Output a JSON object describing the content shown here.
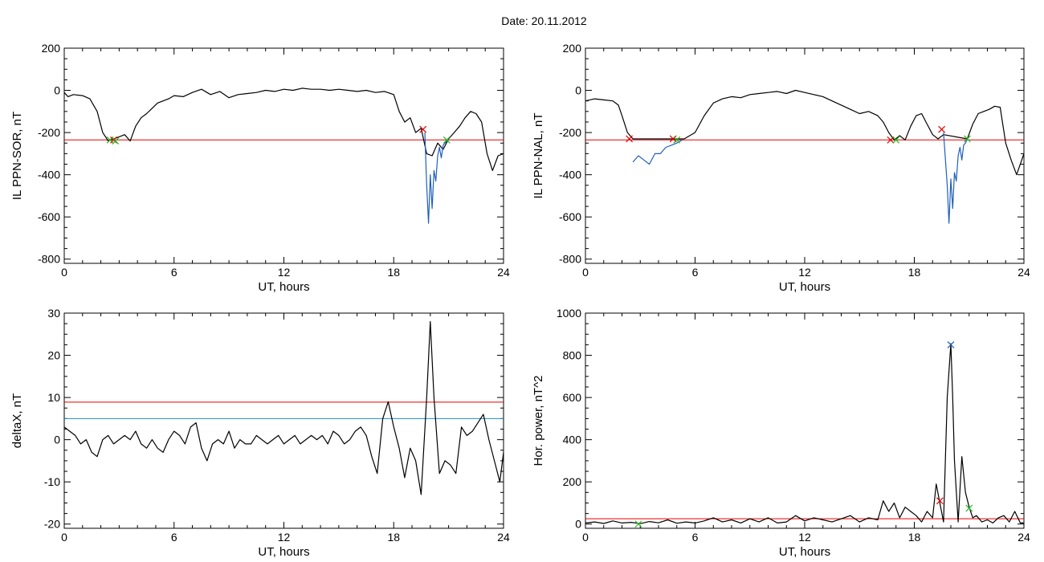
{
  "header": {
    "date_label": "Date:  20.11.2012"
  },
  "colors": {
    "line": "#000000",
    "blue": "#1f5fbf",
    "red": "#e60000",
    "cyan": "#1f8fbf",
    "green": "#22bb22"
  },
  "chart_data": [
    {
      "id": "sor",
      "type": "line",
      "xlabel": "UT, hours",
      "ylabel": "IL PPN-SOR, nT",
      "xlim": [
        0,
        24
      ],
      "ylim": [
        -820,
        200
      ],
      "xticks": [
        "0",
        "6",
        "12",
        "18",
        "24"
      ],
      "yticks": [
        "200",
        "0",
        "-200",
        "-400",
        "-600",
        "-800"
      ],
      "ytick_values": [
        200,
        0,
        -200,
        -400,
        -600,
        -800
      ],
      "series": [
        {
          "color": "black",
          "x": [
            0,
            0.2,
            0.5,
            1,
            1.4,
            1.8,
            2.1,
            2.4,
            2.7,
            3.0,
            3.3,
            3.6,
            3.9,
            4.2,
            4.5,
            4.8,
            5.1,
            5.4,
            5.7,
            6.0,
            6.5,
            7,
            7.5,
            8,
            8.5,
            9,
            9.5,
            10,
            10.5,
            11,
            11.5,
            12,
            12.5,
            13,
            13.5,
            14,
            14.5,
            15,
            15.5,
            16,
            16.5,
            17,
            17.5,
            18.0,
            18.3,
            18.6,
            18.9,
            19.2,
            19.5,
            19.8,
            20.1,
            20.4,
            20.7,
            21.0,
            21.3,
            21.6,
            21.9,
            22.2,
            22.5,
            22.8,
            23.1,
            23.4,
            23.7,
            24
          ],
          "y": [
            -10,
            -30,
            -20,
            -25,
            -40,
            -100,
            -200,
            -240,
            -230,
            -220,
            -210,
            -240,
            -170,
            -130,
            -110,
            -85,
            -60,
            -50,
            -40,
            -25,
            -30,
            -10,
            5,
            -20,
            -5,
            -35,
            -20,
            -15,
            -10,
            0,
            -5,
            5,
            0,
            10,
            5,
            5,
            0,
            5,
            0,
            -5,
            0,
            -10,
            -5,
            -20,
            -100,
            -150,
            -130,
            -200,
            -180,
            -300,
            -310,
            -250,
            -280,
            -230,
            -200,
            -170,
            -130,
            -100,
            -110,
            -150,
            -300,
            -380,
            -310,
            -300
          ]
        },
        {
          "color": "blue",
          "x": [
            19.7,
            19.8,
            19.9,
            20.0,
            20.1,
            20.2,
            20.3,
            20.4,
            20.5,
            20.6,
            20.7,
            20.8,
            20.9,
            21.0
          ],
          "y": [
            -200,
            -450,
            -630,
            -400,
            -560,
            -380,
            -430,
            -310,
            -270,
            -320,
            -260,
            -250,
            -240,
            -230
          ]
        }
      ],
      "threshold": {
        "color": "red",
        "value": -235
      },
      "markers": [
        {
          "x": 2.5,
          "y": -235,
          "color": "green"
        },
        {
          "x": 2.7,
          "y": -235,
          "color": "red"
        },
        {
          "x": 2.8,
          "y": -240,
          "color": "green"
        },
        {
          "x": 19.6,
          "y": -185,
          "color": "red"
        },
        {
          "x": 20.9,
          "y": -235,
          "color": "green"
        }
      ]
    },
    {
      "id": "nal",
      "type": "line",
      "xlabel": "UT, hours",
      "ylabel": "IL PPN-NAL, nT",
      "xlim": [
        0,
        24
      ],
      "ylim": [
        -820,
        200
      ],
      "xticks": [
        "0",
        "6",
        "12",
        "18",
        "24"
      ],
      "yticks": [
        "200",
        "0",
        "-200",
        "-400",
        "-600",
        "-800"
      ],
      "ytick_values": [
        200,
        0,
        -200,
        -400,
        -600,
        -800
      ],
      "series": [
        {
          "color": "black",
          "x": [
            0,
            0.5,
            1,
            1.5,
            1.8,
            2.0,
            2.3,
            2.6,
            5.4,
            6.0,
            6.5,
            7,
            7.5,
            8,
            8.5,
            9,
            9.5,
            10,
            10.5,
            11,
            11.5,
            12,
            12.5,
            13,
            13.5,
            14,
            14.5,
            15,
            15.5,
            16,
            16.3,
            16.6,
            16.9,
            17.2,
            17.5,
            17.8,
            18.1,
            18.4,
            18.7,
            19.0,
            19.3,
            19.6,
            20.9,
            21.2,
            21.5,
            21.8,
            22.1,
            22.4,
            22.7,
            23.0,
            23.3,
            23.6,
            24
          ],
          "y": [
            -50,
            -40,
            -45,
            -50,
            -70,
            -120,
            -200,
            -230,
            -230,
            -200,
            -120,
            -60,
            -40,
            -30,
            -35,
            -20,
            -15,
            -10,
            -5,
            -15,
            0,
            -10,
            -20,
            -30,
            -50,
            -70,
            -90,
            -110,
            -100,
            -120,
            -150,
            -200,
            -235,
            -215,
            -235,
            -170,
            -120,
            -110,
            -160,
            -210,
            -230,
            -210,
            -230,
            -160,
            -110,
            -100,
            -90,
            -75,
            -80,
            -250,
            -330,
            -400,
            -300
          ]
        },
        {
          "color": "blue",
          "x": [
            2.6,
            2.9,
            3.2,
            3.5,
            3.8,
            4.1,
            4.4,
            4.7,
            5.0,
            5.3
          ],
          "y": [
            -340,
            -310,
            -330,
            -350,
            -300,
            -300,
            -270,
            -260,
            -250,
            -235
          ]
        },
        {
          "color": "blue",
          "x": [
            19.6,
            19.8,
            19.9,
            20.0,
            20.1,
            20.2,
            20.3,
            20.4,
            20.5,
            20.6,
            20.7,
            20.8,
            20.9
          ],
          "y": [
            -200,
            -450,
            -630,
            -420,
            -560,
            -390,
            -430,
            -310,
            -270,
            -330,
            -260,
            -250,
            -230
          ]
        }
      ],
      "threshold": {
        "color": "red",
        "value": -235
      },
      "markers": [
        {
          "x": 2.4,
          "y": -230,
          "color": "red"
        },
        {
          "x": 4.8,
          "y": -230,
          "color": "red"
        },
        {
          "x": 5.0,
          "y": -235,
          "color": "green"
        },
        {
          "x": 16.7,
          "y": -235,
          "color": "red"
        },
        {
          "x": 17.0,
          "y": -235,
          "color": "green"
        },
        {
          "x": 19.5,
          "y": -185,
          "color": "red"
        },
        {
          "x": 20.9,
          "y": -230,
          "color": "green"
        }
      ]
    },
    {
      "id": "deltax",
      "type": "line",
      "xlabel": "UT, hours",
      "ylabel": "deltaX, nT",
      "xlim": [
        0,
        24
      ],
      "ylim": [
        -21,
        30
      ],
      "xticks": [
        "0",
        "6",
        "12",
        "18",
        "24"
      ],
      "yticks": [
        "30",
        "20",
        "10",
        "0",
        "-10",
        "-20"
      ],
      "ytick_values": [
        30,
        20,
        10,
        0,
        -10,
        -20
      ],
      "series": [
        {
          "color": "black",
          "x": [
            0,
            0.3,
            0.6,
            0.9,
            1.2,
            1.5,
            1.8,
            2.1,
            2.4,
            2.7,
            3.0,
            3.3,
            3.6,
            3.9,
            4.2,
            4.5,
            4.8,
            5.1,
            5.4,
            5.7,
            6.0,
            6.3,
            6.6,
            6.9,
            7.2,
            7.5,
            7.8,
            8.1,
            8.4,
            8.7,
            9.0,
            9.3,
            9.6,
            9.9,
            10.2,
            10.5,
            10.8,
            11.1,
            11.4,
            11.7,
            12.0,
            12.3,
            12.6,
            12.9,
            13.2,
            13.5,
            13.8,
            14.1,
            14.4,
            14.7,
            15.0,
            15.3,
            15.6,
            15.9,
            16.2,
            16.5,
            16.8,
            17.1,
            17.4,
            17.7,
            18.0,
            18.3,
            18.6,
            18.9,
            19.2,
            19.5,
            19.8,
            20.0,
            20.2,
            20.5,
            20.8,
            21.1,
            21.4,
            21.7,
            22.0,
            22.3,
            22.6,
            22.9,
            23.2,
            23.5,
            23.8,
            24
          ],
          "y": [
            3,
            2,
            1,
            -1,
            0,
            -3,
            -4,
            0,
            1,
            -1,
            0,
            1,
            0,
            2,
            -1,
            -2,
            0,
            -2,
            -3,
            0,
            2,
            1,
            -1,
            3,
            4,
            -2,
            -5,
            -1,
            0,
            -1,
            2,
            -2,
            0,
            -1,
            -1,
            1,
            0,
            -1,
            0,
            1,
            -1,
            0,
            1,
            -1,
            0,
            1,
            0,
            1,
            -1,
            2,
            1,
            -1,
            0,
            2,
            3,
            1,
            -4,
            -8,
            5,
            9,
            3,
            -2,
            -9,
            -2,
            -5,
            -13,
            10,
            28,
            10,
            -8,
            -5,
            -6,
            -8,
            3,
            1,
            2,
            4,
            6,
            0,
            -5,
            -10,
            -3
          ]
        }
      ],
      "thresholds": [
        {
          "color": "red",
          "value": 8.9
        },
        {
          "color": "cyan",
          "value": 5
        }
      ],
      "markers": []
    },
    {
      "id": "power",
      "type": "line",
      "xlabel": "UT, hours",
      "ylabel": "Hor. power, nT^2",
      "xlim": [
        0,
        24
      ],
      "ylim": [
        -20,
        1000
      ],
      "xticks": [
        "0",
        "6",
        "12",
        "18",
        "24"
      ],
      "yticks": [
        "1000",
        "800",
        "600",
        "400",
        "200",
        "0"
      ],
      "ytick_values": [
        1000,
        800,
        600,
        400,
        200,
        0
      ],
      "series": [
        {
          "color": "black",
          "x": [
            0,
            0.5,
            1,
            1.5,
            2,
            2.5,
            3,
            3.5,
            4,
            4.5,
            5,
            5.5,
            6,
            6.5,
            7,
            7.5,
            8,
            8.5,
            9,
            9.5,
            10,
            10.5,
            11,
            11.5,
            12,
            12.5,
            13,
            13.5,
            14,
            14.5,
            15,
            15.5,
            16,
            16.3,
            16.6,
            16.9,
            17.2,
            17.5,
            17.8,
            18.1,
            18.4,
            18.7,
            19.0,
            19.2,
            19.4,
            19.6,
            19.8,
            20.0,
            20.1,
            20.2,
            20.4,
            20.6,
            20.8,
            21.0,
            21.2,
            21.4,
            21.7,
            22.0,
            22.3,
            22.6,
            22.9,
            23.2,
            23.5,
            23.8,
            24
          ],
          "y": [
            5,
            10,
            3,
            15,
            5,
            8,
            2,
            12,
            6,
            20,
            4,
            10,
            5,
            15,
            30,
            10,
            20,
            5,
            25,
            10,
            30,
            5,
            10,
            40,
            15,
            30,
            20,
            10,
            25,
            40,
            10,
            30,
            20,
            110,
            60,
            100,
            30,
            80,
            60,
            40,
            10,
            60,
            30,
            190,
            100,
            10,
            600,
            855,
            600,
            300,
            10,
            320,
            150,
            80,
            30,
            40,
            10,
            20,
            5,
            30,
            40,
            10,
            60,
            5,
            5
          ]
        }
      ],
      "threshold": {
        "color": "red",
        "value": 25
      },
      "markers": [
        {
          "x": 2.9,
          "y": 0,
          "color": "green"
        },
        {
          "x": 19.4,
          "y": 110,
          "color": "red"
        },
        {
          "x": 20.0,
          "y": 850,
          "color": "blue"
        },
        {
          "x": 21.0,
          "y": 75,
          "color": "green"
        }
      ]
    }
  ]
}
